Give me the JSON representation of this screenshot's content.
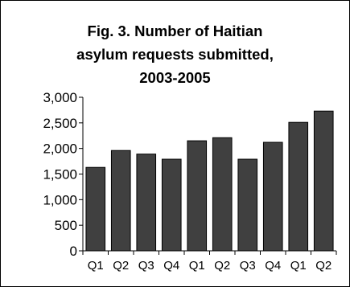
{
  "chart_data": {
    "type": "bar",
    "title_lines": [
      "Fig. 3.  Number of Haitian",
      "asylum requests submitted,",
      "2003-2005"
    ],
    "categories": [
      "Q1",
      "Q2",
      "Q3",
      "Q4",
      "Q1",
      "Q2",
      "Q3",
      "Q4",
      "Q1",
      "Q2"
    ],
    "values": [
      1630,
      1960,
      1890,
      1790,
      2150,
      2210,
      1790,
      2120,
      2510,
      2730
    ],
    "y_ticks": [
      "0",
      "500",
      "1,000",
      "1,500",
      "2,000",
      "2,500",
      "3,000"
    ],
    "ylim": [
      0,
      3000
    ],
    "grid": false,
    "legend": false,
    "colors": {
      "bar": "#404040",
      "bar_edge": "#000000",
      "frame": "#000000"
    }
  }
}
